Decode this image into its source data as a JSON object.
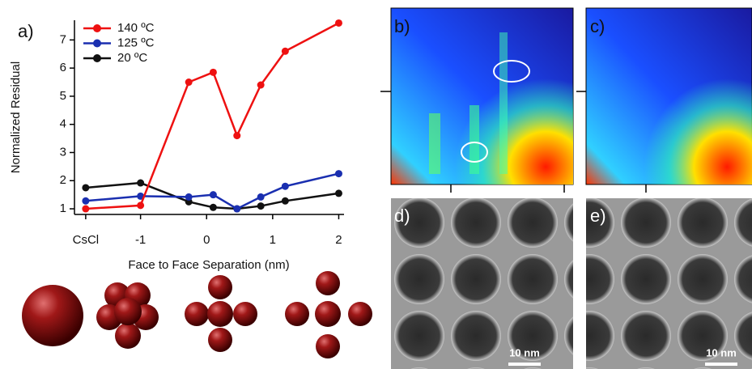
{
  "chart_data": {
    "type": "line",
    "panel_label": "a)",
    "x_label": "Face to Face Separation (nm)",
    "y_label": "Normalized Residual",
    "x": [
      -1.83,
      -1,
      -0.27,
      0.1,
      0.46,
      0.82,
      1.19,
      2
    ],
    "series": [
      {
        "name": "140 ºC",
        "color": "#ee1111",
        "values": [
          1.0,
          1.12,
          5.5,
          5.85,
          3.6,
          5.4,
          6.6,
          7.6
        ]
      },
      {
        "name": "125 ºC",
        "color": "#1a2fb0",
        "values": [
          1.28,
          1.45,
          1.42,
          1.5,
          1.0,
          1.42,
          1.8,
          2.25
        ]
      },
      {
        "name": "20 ºC",
        "color": "#111111",
        "values": [
          1.75,
          1.92,
          1.25,
          1.05,
          1.0,
          1.1,
          1.28,
          1.55
        ]
      }
    ],
    "xlim": [
      -2,
      2.08
    ],
    "xticks": [
      {
        "value": -1.83,
        "label": "CsCl"
      },
      -1,
      0,
      1,
      2
    ],
    "ylim": [
      0.8,
      7.7
    ],
    "yticks": [
      1,
      2,
      3,
      4,
      5,
      6,
      7
    ],
    "legend": "upper left"
  },
  "panels": [
    {
      "label": "b)"
    },
    {
      "label": "c)"
    },
    {
      "label": "d)",
      "scale_bar": "10 nm"
    },
    {
      "label": "e)",
      "scale_bar": "10 nm"
    }
  ]
}
